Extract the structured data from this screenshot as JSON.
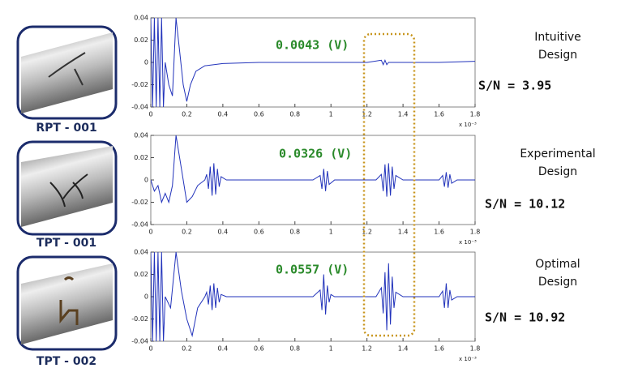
{
  "chart_data": [
    {
      "type": "line",
      "caption": "RPT - 001",
      "color": "#2233bb",
      "annotations": {
        "value_label": "0.0043 (V)",
        "design": [
          "Intuitive",
          "Design"
        ],
        "sn": "S/N = 3.95"
      },
      "x_multiplier": "x 10⁻³",
      "xlim": [
        0,
        1.8
      ],
      "xticks": [
        0,
        0.2,
        0.4,
        0.6,
        0.8,
        1,
        1.2,
        1.4,
        1.6,
        1.8
      ],
      "ylim": [
        -0.04,
        0.04
      ],
      "yticks": [
        -0.04,
        -0.02,
        0,
        0.02,
        0.04
      ],
      "x": [
        0,
        0.01,
        0.02,
        0.03,
        0.04,
        0.05,
        0.06,
        0.07,
        0.08,
        0.1,
        0.12,
        0.14,
        0.16,
        0.18,
        0.2,
        0.22,
        0.25,
        0.3,
        0.4,
        0.6,
        0.8,
        1.0,
        1.2,
        1.28,
        1.29,
        1.3,
        1.31,
        1.32,
        1.4,
        1.6,
        1.8
      ],
      "values": [
        0.04,
        -0.04,
        0.04,
        -0.04,
        0.04,
        -0.04,
        0.04,
        -0.04,
        0.0,
        -0.02,
        -0.03,
        0.04,
        0.01,
        -0.02,
        -0.035,
        -0.02,
        -0.008,
        -0.003,
        -0.001,
        0,
        0,
        0,
        0,
        0.002,
        -0.002,
        0.002,
        -0.002,
        0,
        0,
        0,
        0.001
      ]
    },
    {
      "type": "line",
      "caption": "TPT - 001",
      "color": "#2233bb",
      "annotations": {
        "value_label": "0.0326 (V)",
        "design": [
          "Experimental",
          "Design"
        ],
        "sn": "S/N = 10.12"
      },
      "x_multiplier": "x 10⁻³",
      "xlim": [
        0,
        1.8
      ],
      "xticks": [
        0,
        0.2,
        0.4,
        0.6,
        0.8,
        1,
        1.2,
        1.4,
        1.6,
        1.8
      ],
      "ylim": [
        -0.04,
        0.04
      ],
      "yticks": [
        -0.04,
        -0.02,
        0,
        0.02,
        0.04
      ],
      "x": [
        0,
        0.02,
        0.04,
        0.06,
        0.08,
        0.1,
        0.12,
        0.14,
        0.17,
        0.2,
        0.23,
        0.26,
        0.3,
        0.31,
        0.32,
        0.33,
        0.34,
        0.35,
        0.36,
        0.37,
        0.38,
        0.39,
        0.42,
        0.6,
        0.9,
        0.94,
        0.95,
        0.96,
        0.97,
        0.98,
        0.99,
        1.02,
        1.25,
        1.28,
        1.29,
        1.3,
        1.31,
        1.32,
        1.33,
        1.34,
        1.35,
        1.36,
        1.4,
        1.6,
        1.62,
        1.63,
        1.64,
        1.65,
        1.66,
        1.67,
        1.7,
        1.8
      ],
      "values": [
        0,
        -0.01,
        -0.005,
        -0.02,
        -0.012,
        -0.02,
        -0.005,
        0.04,
        0.01,
        -0.02,
        -0.015,
        -0.005,
        0,
        0.005,
        -0.008,
        0.012,
        -0.014,
        0.015,
        -0.013,
        0.01,
        -0.006,
        0.003,
        0,
        0,
        0,
        0.004,
        -0.008,
        0.01,
        -0.01,
        0.008,
        -0.004,
        0,
        0,
        0.005,
        -0.01,
        0.014,
        -0.015,
        0.015,
        -0.014,
        0.012,
        -0.008,
        0.004,
        0,
        0,
        0.004,
        -0.006,
        0.007,
        -0.007,
        0.005,
        -0.003,
        0,
        0
      ]
    },
    {
      "type": "line",
      "caption": "TPT - 002",
      "color": "#2233bb",
      "annotations": {
        "value_label": "0.0557 (V)",
        "design": [
          "Optimal",
          "Design"
        ],
        "sn": "S/N = 10.92"
      },
      "x_multiplier": "x 10⁻³",
      "xlim": [
        0,
        1.8
      ],
      "xticks": [
        0,
        0.2,
        0.4,
        0.6,
        0.8,
        1,
        1.2,
        1.4,
        1.6,
        1.8
      ],
      "ylim": [
        -0.04,
        0.04
      ],
      "yticks": [
        -0.04,
        -0.02,
        0,
        0.02,
        0.04
      ],
      "x": [
        0,
        0.01,
        0.02,
        0.03,
        0.04,
        0.05,
        0.06,
        0.07,
        0.08,
        0.11,
        0.14,
        0.17,
        0.2,
        0.23,
        0.26,
        0.3,
        0.31,
        0.32,
        0.33,
        0.34,
        0.35,
        0.36,
        0.37,
        0.38,
        0.39,
        0.42,
        0.6,
        0.9,
        0.94,
        0.95,
        0.96,
        0.97,
        0.98,
        0.99,
        1.0,
        1.02,
        1.25,
        1.28,
        1.29,
        1.3,
        1.31,
        1.32,
        1.33,
        1.34,
        1.35,
        1.36,
        1.4,
        1.6,
        1.62,
        1.63,
        1.64,
        1.65,
        1.66,
        1.67,
        1.7,
        1.8
      ],
      "values": [
        0.04,
        -0.04,
        0.04,
        -0.04,
        0.04,
        -0.04,
        0.04,
        -0.04,
        0.0,
        -0.01,
        0.04,
        0.005,
        -0.02,
        -0.035,
        -0.01,
        0,
        0.004,
        -0.007,
        0.01,
        -0.012,
        0.012,
        -0.01,
        0.008,
        -0.005,
        0.002,
        0,
        0,
        0,
        0.006,
        -0.012,
        0.02,
        -0.016,
        0.01,
        -0.005,
        0.002,
        0,
        0,
        0.008,
        -0.015,
        0.022,
        -0.03,
        0.03,
        -0.025,
        0.018,
        -0.01,
        0.004,
        0,
        0,
        0.005,
        -0.01,
        0.012,
        -0.01,
        0.006,
        -0.003,
        0,
        0
      ]
    }
  ]
}
